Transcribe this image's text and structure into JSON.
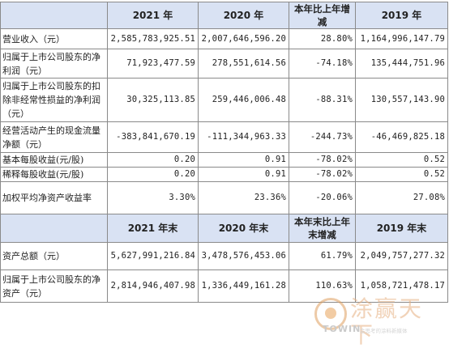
{
  "header1": {
    "c1": "2021 年",
    "c2": "2020 年",
    "c3": "本年比上年增减",
    "c4": "2019 年"
  },
  "rows1": [
    {
      "label": "营业收入（元）",
      "v1": "2,585,783,925.51",
      "v2": "2,007,646,596.20",
      "v3": "28.80%",
      "v4": "1,164,996,147.79"
    },
    {
      "label": "归属于上市公司股东的净利润（元）",
      "v1": "71,923,477.59",
      "v2": "278,551,614.56",
      "v3": "-74.18%",
      "v4": "135,444,751.96"
    },
    {
      "label": "归属于上市公司股东的扣除非经常性损益的净利润（元）",
      "v1": "30,325,113.85",
      "v2": "259,446,006.48",
      "v3": "-88.31%",
      "v4": "130,557,143.90"
    },
    {
      "label": "经营活动产生的现金流量净额（元）",
      "v1": "-383,841,670.19",
      "v2": "-111,344,963.33",
      "v3": "-244.73%",
      "v4": "-46,469,825.18"
    },
    {
      "label": "基本每股收益(元/股)",
      "v1": "0.20",
      "v2": "0.91",
      "v3": "-78.02%",
      "v4": "0.52"
    },
    {
      "label": "稀释每股收益(元/股)",
      "v1": "0.20",
      "v2": "0.91",
      "v3": "-78.02%",
      "v4": "0.52"
    },
    {
      "label": "加权平均净资产收益率",
      "v1": "3.30%",
      "v2": "23.36%",
      "v3": "-20.06%",
      "v4": "27.08%"
    }
  ],
  "header2": {
    "c1": "2021 年末",
    "c2": "2020 年末",
    "c3": "本年末比上年末增减",
    "c4": "2019 年末"
  },
  "rows2": [
    {
      "label": "资产总额（元）",
      "v1": "5,627,991,216.84",
      "v2": "3,478,576,453.06",
      "v3": "61.79%",
      "v4": "2,049,757,277.32"
    },
    {
      "label": "归属于上市公司股东的净资产（元）",
      "v1": "2,814,946,407.98",
      "v2": "1,336,449,161.28",
      "v3": "110.63%",
      "v4": "1,058,721,478.17"
    }
  ],
  "watermark": {
    "cn": "涂赢天下",
    "en": "TOWIN",
    "tag": "会思考的涂料新媒体"
  },
  "colors": {
    "header_bg": "#d9e2f3",
    "border": "#8a8a8a",
    "watermark": "#e6b080"
  }
}
